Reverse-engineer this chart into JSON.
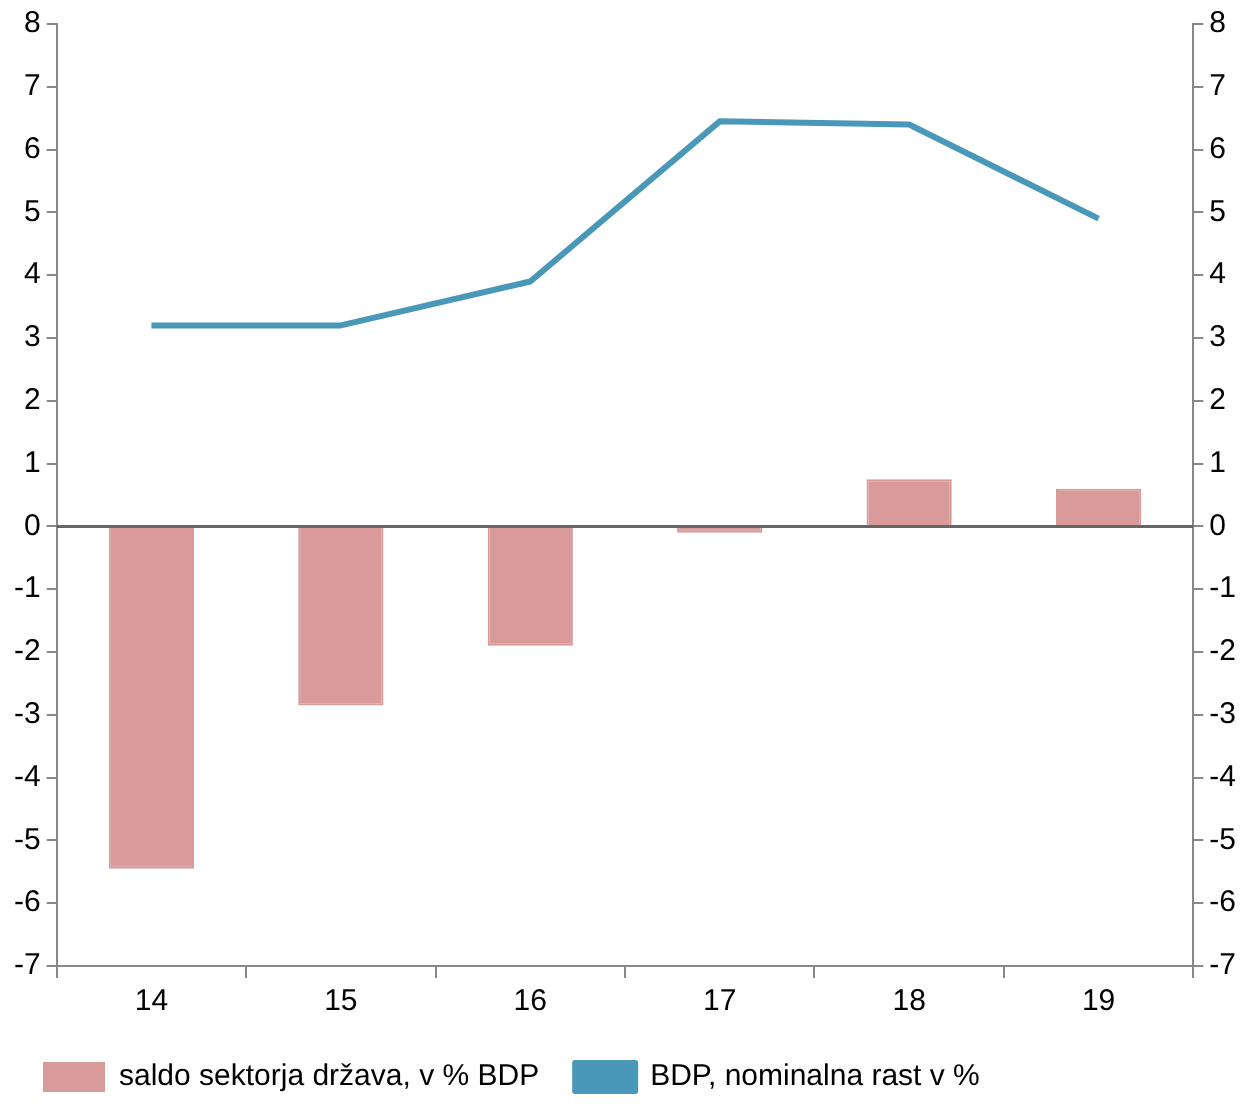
{
  "chart_data": {
    "type": "bar",
    "categories": [
      "14",
      "15",
      "16",
      "17",
      "18",
      "19"
    ],
    "series": [
      {
        "name": "saldo sektorja država, v % BDP",
        "color": "#d99a9a",
        "values": [
          -5.45,
          -2.85,
          -1.9,
          -0.1,
          0.75,
          0.6
        ]
      },
      {
        "name": "BDP, nominalna rast v %",
        "type": "line",
        "color": "#4a98b8",
        "values": [
          3.2,
          3.2,
          3.9,
          6.45,
          6.4,
          4.9
        ]
      }
    ],
    "ylim": [
      -7,
      8
    ],
    "yticks": [
      -7,
      -6,
      -5,
      -4,
      -3,
      -2,
      -1,
      0,
      1,
      2,
      3,
      4,
      5,
      6,
      7,
      8
    ],
    "y2lim": [
      -7,
      8
    ],
    "y2ticks": [
      -7,
      -6,
      -5,
      -4,
      -3,
      -2,
      -1,
      0,
      1,
      2,
      3,
      4,
      5,
      6,
      7,
      8
    ],
    "ref_lines": [
      {
        "axis": "y",
        "value": 0,
        "color": "#666666"
      }
    ],
    "legend": "bottom",
    "marker": "none"
  }
}
